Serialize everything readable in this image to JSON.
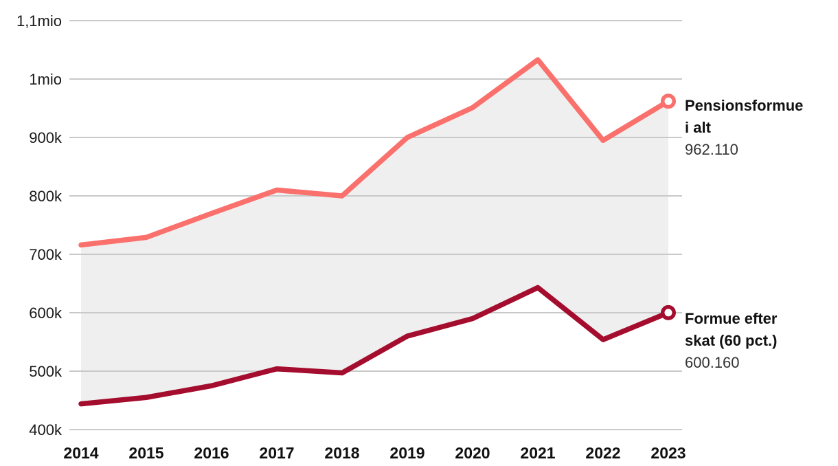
{
  "chart_data": {
    "type": "line",
    "x": [
      2014,
      2015,
      2016,
      2017,
      2018,
      2019,
      2020,
      2021,
      2022,
      2023
    ],
    "series": [
      {
        "name": "Pensionsformue i alt",
        "color": "#F9706C",
        "values": [
          716000,
          729000,
          770000,
          810000,
          800000,
          900000,
          951000,
          1033000,
          895000,
          962110
        ],
        "end_value": 962110,
        "end_value_label": "962.110"
      },
      {
        "name": "Formue efter skat (60 pct.)",
        "color": "#A40D2E",
        "values": [
          444000,
          455000,
          475000,
          504000,
          497000,
          560000,
          590000,
          643000,
          554000,
          600160
        ],
        "end_value": 600160,
        "end_value_label": "600.160"
      }
    ],
    "ylim": [
      400000,
      1100000
    ],
    "yticks": [
      {
        "value": 1100000,
        "label": "1,1mio"
      },
      {
        "value": 1000000,
        "label": "1mio"
      },
      {
        "value": 900000,
        "label": "900k"
      },
      {
        "value": 800000,
        "label": "800k"
      },
      {
        "value": 700000,
        "label": "700k"
      },
      {
        "value": 600000,
        "label": "600k"
      },
      {
        "value": 500000,
        "label": "500k"
      },
      {
        "value": 400000,
        "label": "400k"
      }
    ],
    "grid": true,
    "gridline_color": "#C9C9C9",
    "fill_between": {
      "enabled": true,
      "color": "#F0EFEF"
    },
    "legend_position": "right-of-line-ends",
    "title": "",
    "xlabel": "",
    "ylabel": ""
  },
  "annotations": [
    {
      "line1": "Pensionsformue",
      "line2": "i alt",
      "value": "962.110"
    },
    {
      "line1": "Formue efter",
      "line2": "skat (60 pct.)",
      "value": "600.160"
    }
  ]
}
